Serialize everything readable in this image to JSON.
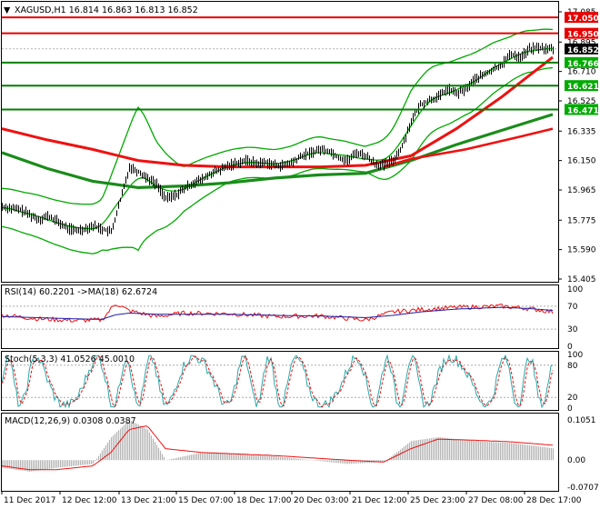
{
  "colors": {
    "background": "#ffffff",
    "frame": "#000000",
    "bollinger": "#00aa00",
    "ma_red": "#ee1111",
    "ma_green": "#1a8c1a",
    "support_line": "#008000",
    "resistance_line": "#e60000",
    "support_label": "#00aa00",
    "resistance_label": "#e60000",
    "price_label": "#000000",
    "rsi": "#ee1111",
    "rsi_ma": "#1a1aaa",
    "stoch_main": "#2aa9a9",
    "stoch_signal": "#ee1111",
    "macd_hist": "#b4b4b4",
    "macd_signal": "#ee1111"
  },
  "main": {
    "header": "XAGUSD,H1  16.814 16.863 16.813 16.852",
    "menu_icon": "triangle-down-icon",
    "current_price": "16.852",
    "resistance_levels": [
      "17.050",
      "16.950"
    ],
    "support_levels": [
      "16.766",
      "16.621",
      "16.471"
    ]
  },
  "rsi": {
    "label": "RSI(14) 60.2201  ->MA(18) 62.6724",
    "ticks": [
      "100",
      "70",
      "30",
      "0"
    ]
  },
  "stoch": {
    "label": "Stoch(5,3,3) 41.0526 45.0010",
    "ticks": [
      "100",
      "80",
      "20",
      "0"
    ]
  },
  "macd": {
    "label": "MACD(12,26,9) 0.0308 0.0387",
    "ticks": [
      "0.1051",
      "0.00",
      "-0.0707"
    ]
  },
  "chart_data": {
    "type": "line",
    "title": "XAGUSD,H1",
    "x_tick_labels": [
      "11 Dec 2017",
      "12 Dec 12:00",
      "13 Dec 21:00",
      "15 Dec 07:00",
      "18 Dec 17:00",
      "20 Dec 03:00",
      "21 Dec 12:00",
      "25 Dec 23:00",
      "27 Dec 08:00",
      "28 Dec 17:00"
    ],
    "y_tick_labels": [
      "17.085",
      "16.895",
      "16.710",
      "16.525",
      "16.335",
      "16.150",
      "15.965",
      "15.775",
      "15.590",
      "15.405"
    ],
    "ylim": [
      15.405,
      17.085
    ],
    "ohlc_last": {
      "open": 16.814,
      "high": 16.863,
      "low": 16.813,
      "close": 16.852
    },
    "close_profile": {
      "x": [
        0,
        10,
        20,
        30,
        40,
        50,
        60,
        70,
        80,
        90,
        100,
        110,
        120,
        130,
        140,
        150,
        160,
        170,
        180,
        190,
        200,
        210,
        220,
        230,
        240,
        250,
        260,
        270,
        280,
        290,
        300,
        310,
        320,
        330,
        340,
        350,
        360,
        370,
        380,
        390,
        400,
        410,
        420,
        430,
        440,
        450,
        460,
        470,
        480,
        490,
        500,
        510,
        520,
        530,
        540,
        550,
        560,
        570,
        580,
        590,
        600,
        606
      ],
      "y": [
        15.86,
        15.85,
        15.84,
        15.81,
        15.78,
        15.8,
        15.77,
        15.73,
        15.71,
        15.72,
        15.74,
        15.72,
        15.7,
        15.9,
        16.11,
        16.08,
        16.04,
        16.0,
        15.91,
        15.93,
        15.97,
        16.01,
        16.03,
        16.07,
        16.09,
        16.12,
        16.14,
        16.15,
        16.13,
        16.14,
        16.12,
        16.12,
        16.14,
        16.18,
        16.2,
        16.22,
        16.21,
        16.17,
        16.15,
        16.2,
        16.18,
        16.13,
        16.12,
        16.15,
        16.24,
        16.4,
        16.5,
        16.53,
        16.55,
        16.6,
        16.57,
        16.6,
        16.66,
        16.69,
        16.72,
        16.76,
        16.82,
        16.8,
        16.85,
        16.86,
        16.85,
        16.852
      ]
    },
    "ma_red": {
      "x": [
        0,
        50,
        100,
        150,
        200,
        250,
        300,
        350,
        400,
        450,
        500,
        550,
        606
      ],
      "y": [
        16.35,
        16.28,
        16.22,
        16.15,
        16.12,
        16.11,
        16.11,
        16.11,
        16.12,
        16.18,
        16.35,
        16.55,
        16.8
      ]
    },
    "ma_green": {
      "x": [
        0,
        50,
        100,
        150,
        200,
        250,
        300,
        350,
        400,
        450,
        500,
        550,
        606
      ],
      "y": [
        16.2,
        16.1,
        16.02,
        15.98,
        15.99,
        16.01,
        16.04,
        16.06,
        16.07,
        16.15,
        16.25,
        16.34,
        16.44
      ]
    },
    "ma_red_slow": {
      "x": [
        420,
        450,
        480,
        510,
        540,
        570,
        606
      ],
      "y": [
        16.11,
        16.16,
        16.19,
        16.22,
        16.26,
        16.3,
        16.35
      ]
    },
    "bollinger_width": {
      "x": [
        0,
        60,
        110,
        130,
        150,
        170,
        200,
        250,
        300,
        350,
        400,
        430,
        450,
        480,
        520,
        560,
        606
      ],
      "y": [
        0.12,
        0.14,
        0.16,
        0.3,
        0.45,
        0.28,
        0.14,
        0.1,
        0.09,
        0.1,
        0.08,
        0.15,
        0.22,
        0.2,
        0.18,
        0.14,
        0.12
      ]
    },
    "rsi": {
      "x": [
        0,
        40,
        80,
        110,
        125,
        140,
        170,
        200,
        250,
        300,
        350,
        400,
        430,
        460,
        500,
        550,
        580,
        606
      ],
      "y": [
        55,
        48,
        45,
        46,
        75,
        62,
        52,
        58,
        57,
        52,
        53,
        46,
        60,
        64,
        68,
        70,
        66,
        60
      ],
      "ma": [
        52,
        50,
        48,
        47,
        55,
        58,
        56,
        56,
        56,
        54,
        53,
        50,
        54,
        60,
        65,
        68,
        66,
        62.7
      ]
    },
    "macd": {
      "hist_x": [
        0,
        30,
        60,
        100,
        120,
        140,
        160,
        180,
        220,
        300,
        380,
        420,
        450,
        480,
        520,
        560,
        606
      ],
      "hist_y": [
        -0.02,
        -0.03,
        -0.02,
        -0.01,
        0.06,
        0.105,
        0.08,
        0.0,
        0.02,
        0.01,
        -0.01,
        -0.005,
        0.05,
        0.06,
        0.05,
        0.045,
        0.031
      ],
      "signal": [
        -0.015,
        -0.025,
        -0.025,
        -0.015,
        0.02,
        0.08,
        0.09,
        0.03,
        0.02,
        0.012,
        0.0,
        -0.005,
        0.03,
        0.055,
        0.052,
        0.048,
        0.039
      ]
    }
  }
}
